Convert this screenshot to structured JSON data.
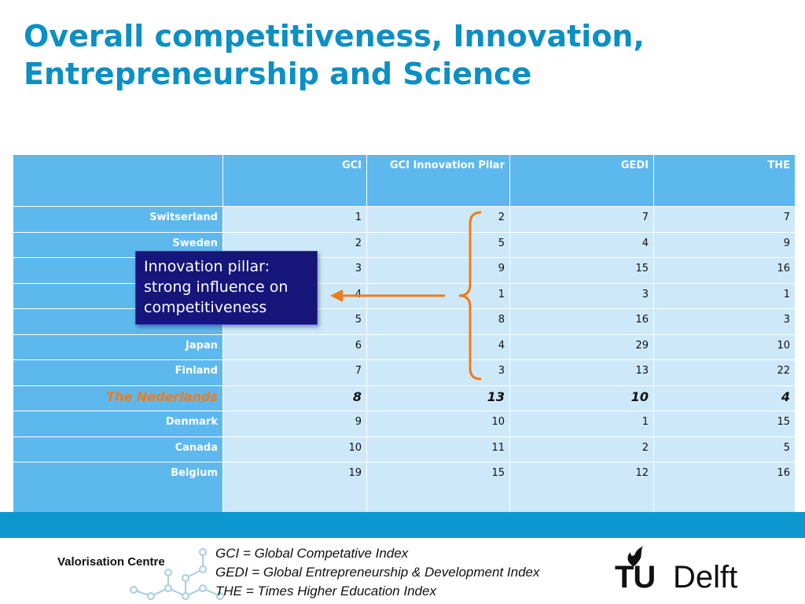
{
  "title": {
    "line1": "Overall competitiveness, Innovation,",
    "line2": "Entrepreneurship and Science"
  },
  "table": {
    "headers": [
      "",
      "GCI",
      "GCI Innovation Pilar",
      "GEDI",
      "THE"
    ],
    "rows": [
      {
        "country": "Switserland",
        "values": [
          "1",
          "2",
          "7",
          "7"
        ]
      },
      {
        "country": "Sweden",
        "values": [
          "2",
          "5",
          "4",
          "9"
        ]
      },
      {
        "country": "",
        "values": [
          "3",
          "9",
          "15",
          "16"
        ]
      },
      {
        "country": "",
        "values": [
          "4",
          "1",
          "3",
          "1"
        ]
      },
      {
        "country": "",
        "values": [
          "5",
          "8",
          "16",
          "3"
        ]
      },
      {
        "country": "Japan",
        "values": [
          "6",
          "4",
          "29",
          "10"
        ]
      },
      {
        "country": "Finland",
        "values": [
          "7",
          "3",
          "13",
          "22"
        ]
      },
      {
        "country": "The Nederlands",
        "values": [
          "8",
          "13",
          "10",
          "4"
        ]
      },
      {
        "country": "Denmark",
        "values": [
          "9",
          "10",
          "1",
          "15"
        ]
      },
      {
        "country": "Canada",
        "values": [
          "10",
          "11",
          "2",
          "5"
        ]
      },
      {
        "country": "Belgium",
        "values": [
          "19",
          "15",
          "12",
          "16"
        ]
      }
    ]
  },
  "callout": {
    "line1": "Innovation pillar:",
    "line2": "strong influence on",
    "line3": "competitiveness"
  },
  "footer": {
    "org": "Valorisation Centre",
    "legend": [
      "GCI = Global Competative Index",
      "GEDI = Global Entrepreneurship & Development Index",
      "THE = Times Higher Education Index"
    ],
    "logo_tu": "TU",
    "logo_delft": "Delft"
  },
  "colors": {
    "title": "#0b8fc4",
    "header_bg": "#5db8ee",
    "cell_bg": "#cde9f9",
    "highlight": "#f07a1a",
    "callout_bg": "#15157a",
    "band": "#0c97cf"
  }
}
